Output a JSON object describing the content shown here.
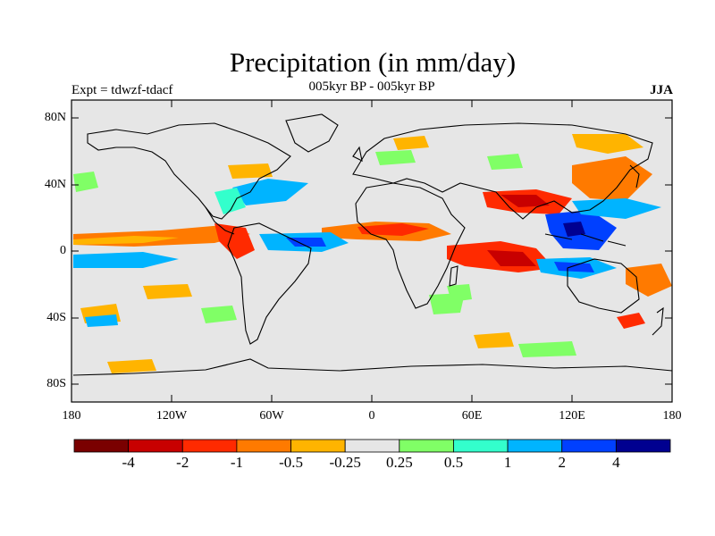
{
  "title": "Precipitation (in mm/day)",
  "subtitle": "005kyr BP - 005kyr BP",
  "experiment": "Expt = tdwzf-tdacf",
  "season": "JJA",
  "lat_labels": [
    "80N",
    "40N",
    "0",
    "40S",
    "80S"
  ],
  "lon_labels": [
    "180",
    "120W",
    "60W",
    "0",
    "60E",
    "120E",
    "180"
  ],
  "colorbar": {
    "colors": [
      "#7a0000",
      "#c80000",
      "#ff2a00",
      "#ff7a00",
      "#ffb400",
      "#e6e6e6",
      "#80ff66",
      "#33ffcc",
      "#00b4ff",
      "#0040ff",
      "#000090"
    ],
    "labels": [
      "-4",
      "-2",
      "-1",
      "-0.5",
      "-0.25",
      "0.25",
      "0.5",
      "1",
      "2",
      "4"
    ]
  },
  "colors": {
    "background_field": "#e6e6e6",
    "coast": "#000000"
  }
}
